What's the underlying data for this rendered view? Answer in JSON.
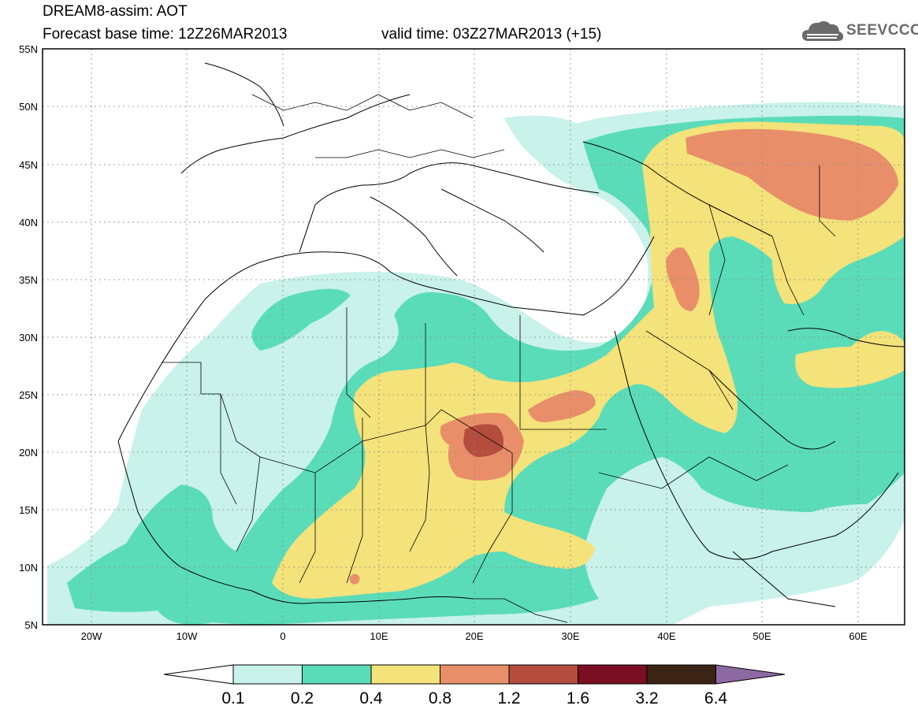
{
  "header": {
    "title": "DREAM8-assim: AOT",
    "base_time": "Forecast base time: 12Z26MAR2013",
    "valid_time": "valid time: 03Z27MAR2013 (+15)"
  },
  "logo": {
    "text": "SEEVCCC",
    "icon": "cloud-icon"
  },
  "map": {
    "lat_labels": [
      "55N",
      "50N",
      "45N",
      "40N",
      "35N",
      "30N",
      "25N",
      "20N",
      "15N",
      "10N",
      "5N"
    ],
    "lon_labels": [
      "20W",
      "10W",
      "0",
      "10E",
      "20E",
      "30E",
      "40E",
      "50E",
      "60E"
    ],
    "lon_range": [
      -25,
      65
    ],
    "lat_range": [
      5,
      55
    ]
  },
  "colorbar": {
    "labels": [
      "0.1",
      "0.2",
      "0.4",
      "0.8",
      "1.2",
      "1.6",
      "3.2",
      "6.4"
    ],
    "colors": [
      "#c8f2ea",
      "#5bdcb9",
      "#f4e27a",
      "#e88f6a",
      "#b44d3e",
      "#7a0e22",
      "#3b2416",
      "#8e6aa3"
    ]
  }
}
